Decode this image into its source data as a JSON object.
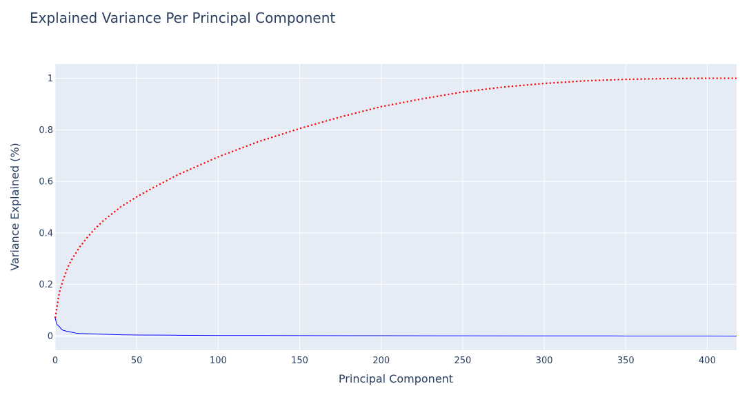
{
  "chart_data": {
    "type": "line",
    "title": "Explained Variance Per Principal Component",
    "xlabel": "Principal Component",
    "ylabel": "Variance Explained (%)",
    "xlim": [
      0,
      418
    ],
    "ylim": [
      -0.055,
      1.055
    ],
    "x_ticks": [
      0,
      50,
      100,
      150,
      200,
      250,
      300,
      350,
      400
    ],
    "y_ticks": [
      0,
      0.2,
      0.4,
      0.6,
      0.8,
      1
    ],
    "y_tick_labels": [
      "0",
      "0.2",
      "0.4",
      "0.6",
      "0.8",
      "1"
    ],
    "grid": true,
    "legend": "none",
    "plot_background": "#e5ecf6",
    "series": [
      {
        "style": "dotted",
        "color": "#ff0000",
        "x": [
          0,
          1,
          2,
          3,
          5,
          8,
          10,
          15,
          20,
          25,
          30,
          40,
          50,
          60,
          75,
          100,
          125,
          150,
          175,
          200,
          225,
          250,
          275,
          300,
          325,
          350,
          375,
          400,
          418
        ],
        "y": [
          0.07,
          0.11,
          0.15,
          0.18,
          0.22,
          0.27,
          0.295,
          0.345,
          0.385,
          0.42,
          0.45,
          0.5,
          0.54,
          0.575,
          0.625,
          0.695,
          0.755,
          0.805,
          0.85,
          0.89,
          0.92,
          0.947,
          0.966,
          0.98,
          0.99,
          0.996,
          0.999,
          1.0,
          1.0
        ]
      },
      {
        "style": "solid",
        "color": "#0000ff",
        "x": [
          0,
          1,
          2,
          3,
          4,
          5,
          7,
          10,
          13,
          15,
          20,
          30,
          40,
          50,
          75,
          100,
          150,
          200,
          250,
          300,
          350,
          400,
          418
        ],
        "y": [
          0.07,
          0.045,
          0.04,
          0.033,
          0.025,
          0.022,
          0.019,
          0.015,
          0.011,
          0.01,
          0.009,
          0.007,
          0.005,
          0.004,
          0.003,
          0.002,
          0.0015,
          0.001,
          0.0008,
          0.0005,
          0.0003,
          0.0001,
          0.0
        ]
      }
    ]
  }
}
